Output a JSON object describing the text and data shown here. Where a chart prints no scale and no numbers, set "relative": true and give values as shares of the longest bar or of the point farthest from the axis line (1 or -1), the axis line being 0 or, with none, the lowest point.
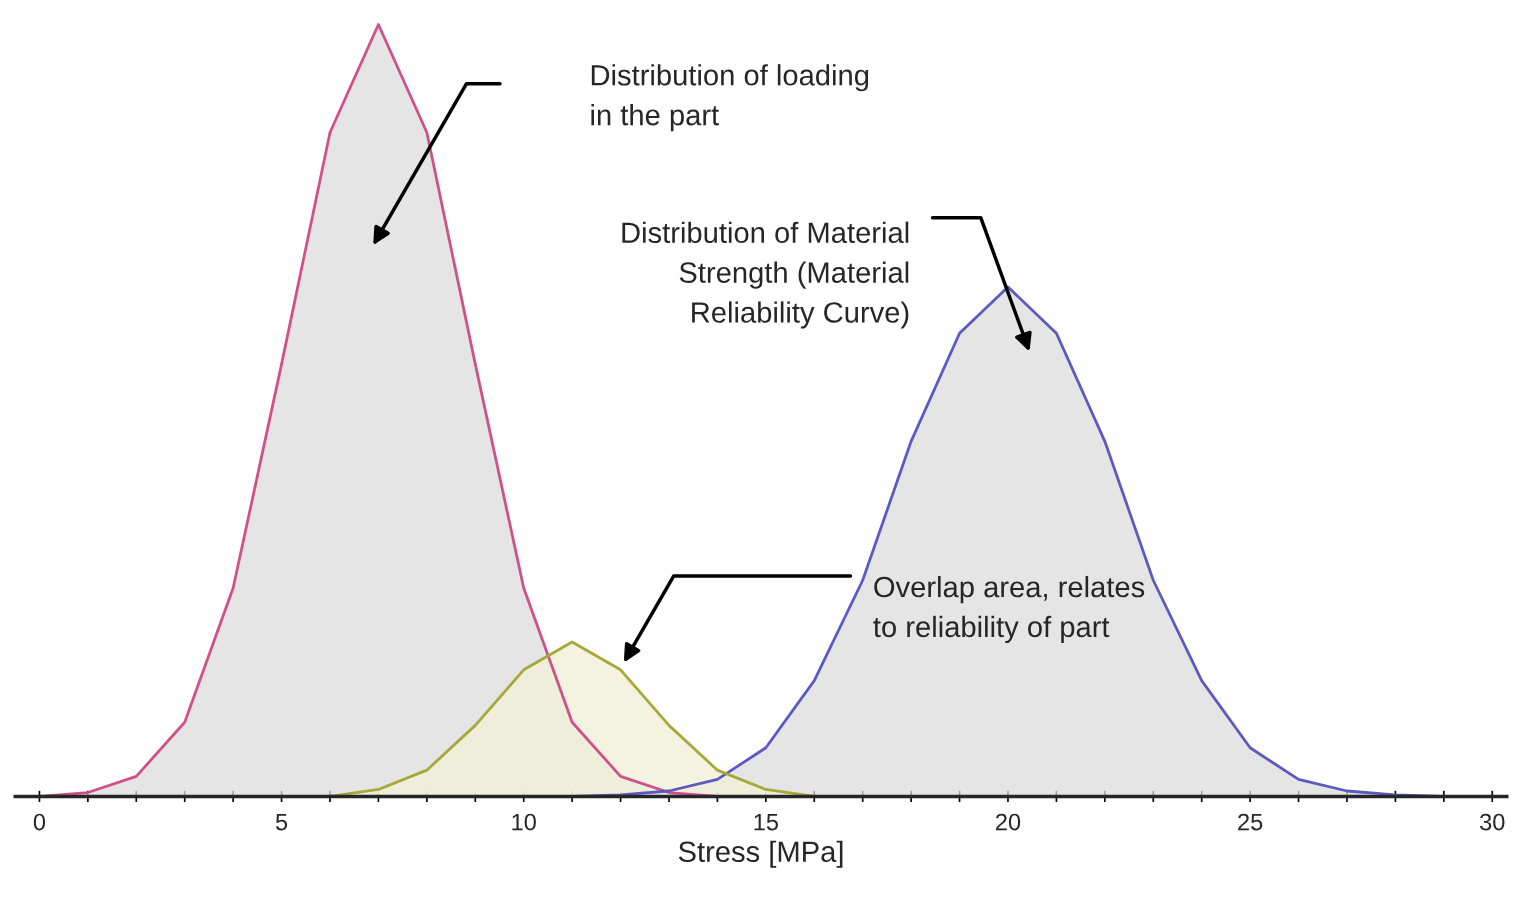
{
  "chart_data": {
    "type": "area",
    "relative": true,
    "xlabel": "Stress [MPa]",
    "xlim": [
      -0.5,
      30.3
    ],
    "xticks": [
      0,
      {
        "value": 1,
        "label": null
      },
      {
        "value": 2,
        "label": null
      },
      {
        "value": 3,
        "label": null
      },
      {
        "value": 4,
        "label": null
      },
      5,
      {
        "value": 6,
        "label": null
      },
      {
        "value": 7,
        "label": null
      },
      {
        "value": 8,
        "label": null
      },
      {
        "value": 9,
        "label": null
      },
      10,
      {
        "value": 11,
        "label": null
      },
      {
        "value": 12,
        "label": null
      },
      {
        "value": 13,
        "label": null
      },
      {
        "value": 14,
        "label": null
      },
      15,
      {
        "value": 16,
        "label": null
      },
      {
        "value": 17,
        "label": null
      },
      {
        "value": 18,
        "label": null
      },
      {
        "value": 19,
        "label": null
      },
      20,
      {
        "value": 21,
        "label": null
      },
      {
        "value": 22,
        "label": null
      },
      {
        "value": 23,
        "label": null
      },
      {
        "value": 24,
        "label": null
      },
      25,
      {
        "value": 26,
        "label": null
      },
      {
        "value": 27,
        "label": null
      },
      {
        "value": 28,
        "label": null
      },
      {
        "value": 29,
        "label": null
      },
      30
    ],
    "grid": false,
    "legend": false,
    "series": [
      {
        "color": "#d0508a",
        "x": [
          0,
          1,
          2,
          3,
          4,
          5,
          6,
          7,
          8,
          9,
          10,
          11,
          12,
          13,
          14
        ],
        "values": [
          0,
          0.005,
          0.026,
          0.096,
          0.27,
          0.56,
          0.86,
          1,
          0.86,
          0.56,
          0.27,
          0.096,
          0.026,
          0.005,
          0
        ]
      },
      {
        "color": "#5a5ac0",
        "x": [
          11,
          12,
          13,
          14,
          15,
          16,
          17,
          18,
          19,
          20,
          21,
          22,
          23,
          24,
          25,
          26,
          27,
          28,
          29
        ],
        "values": [
          0,
          0.002,
          0.007,
          0.022,
          0.063,
          0.15,
          0.28,
          0.46,
          0.6,
          0.66,
          0.6,
          0.46,
          0.28,
          0.15,
          0.063,
          0.022,
          0.007,
          0.002,
          0
        ]
      },
      {
        "color": "#a8a838",
        "x": [
          6,
          7,
          8,
          9,
          10,
          11,
          12,
          13,
          14,
          15,
          16
        ],
        "values": [
          0,
          0.009,
          0.034,
          0.092,
          0.164,
          0.2,
          0.164,
          0.092,
          0.034,
          0.009,
          0
        ]
      }
    ],
    "annotations": [
      "Distribution of loading\nin the part",
      "Distribution of Material\nStrength (Material\nReliability Curve)",
      "Overlap area, relates\nto reliability of part"
    ]
  }
}
